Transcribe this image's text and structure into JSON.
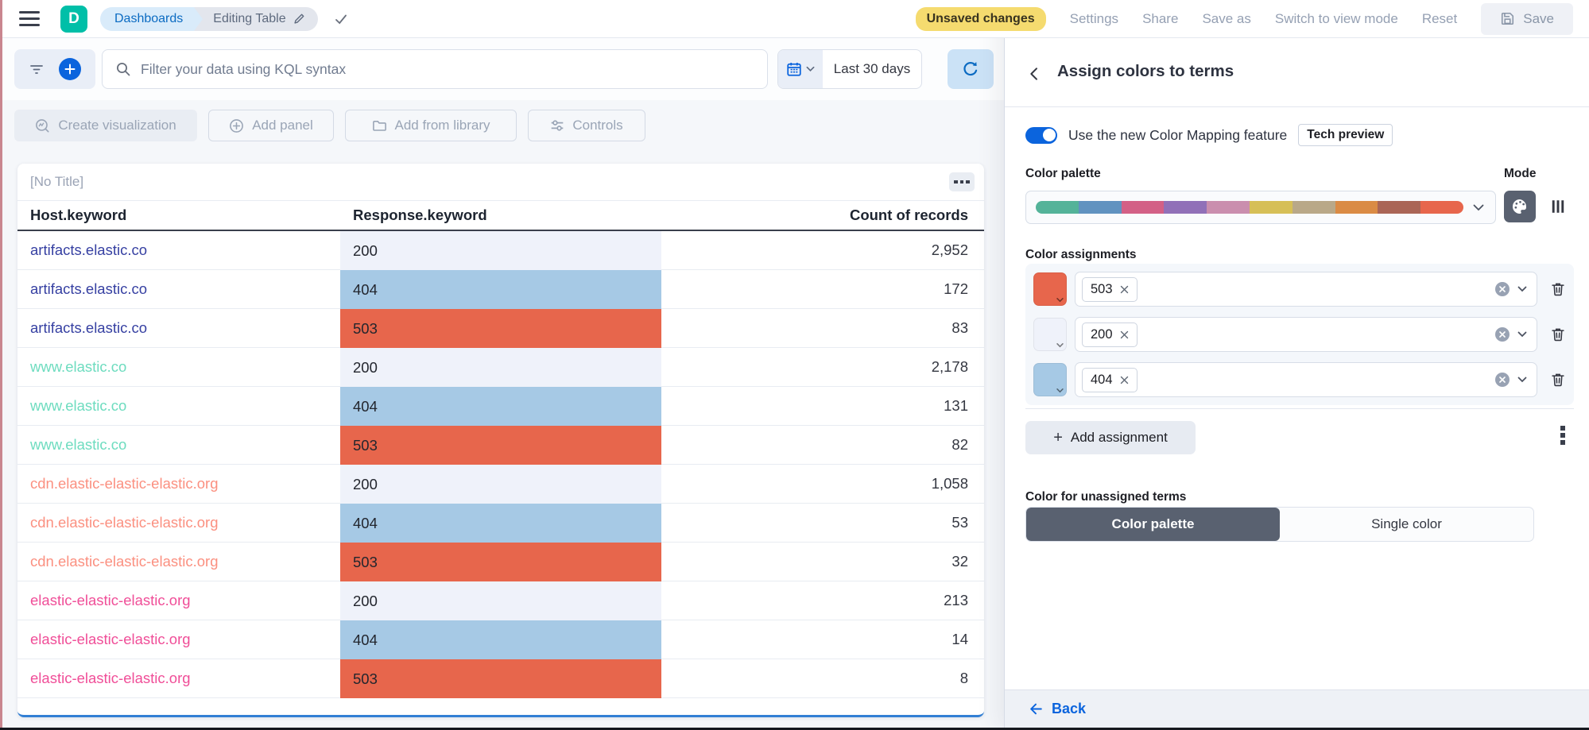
{
  "topbar": {
    "logo_letter": "D",
    "breadcrumbs": [
      "Dashboards",
      "Editing Table"
    ],
    "unsaved_badge": "Unsaved changes",
    "menu": [
      "Settings",
      "Share",
      "Save as",
      "Switch to view mode",
      "Reset"
    ],
    "save_label": "Save"
  },
  "query_bar": {
    "kql_placeholder": "Filter your data using KQL syntax",
    "time_range": "Last 30 days"
  },
  "toolbar": {
    "buttons": [
      "Create visualization",
      "Add panel",
      "Add from library",
      "Controls"
    ]
  },
  "panel": {
    "title": "[No Title]",
    "table": {
      "columns": [
        "Host.keyword",
        "Response.keyword",
        "Count of records"
      ],
      "rows": [
        {
          "host": "artifacts.elastic.co",
          "host_color": "#3640A2",
          "response": "200",
          "response_bg": "#EFF2FA",
          "count": "2,952"
        },
        {
          "host": "artifacts.elastic.co",
          "host_color": "#3640A2",
          "response": "404",
          "response_bg": "#A6C9E5",
          "count": "172"
        },
        {
          "host": "artifacts.elastic.co",
          "host_color": "#3640A2",
          "response": "503",
          "response_bg": "#E7664C",
          "count": "83"
        },
        {
          "host": "www.elastic.co",
          "host_color": "#6DDCBF",
          "response": "200",
          "response_bg": "#EFF2FA",
          "count": "2,178"
        },
        {
          "host": "www.elastic.co",
          "host_color": "#6DDCBF",
          "response": "404",
          "response_bg": "#A6C9E5",
          "count": "131"
        },
        {
          "host": "www.elastic.co",
          "host_color": "#6DDCBF",
          "response": "503",
          "response_bg": "#E7664C",
          "count": "82"
        },
        {
          "host": "cdn.elastic-elastic-elastic.org",
          "host_color": "#FB9080",
          "response": "200",
          "response_bg": "#EFF2FA",
          "count": "1,058"
        },
        {
          "host": "cdn.elastic-elastic-elastic.org",
          "host_color": "#FB9080",
          "response": "404",
          "response_bg": "#A6C9E5",
          "count": "53"
        },
        {
          "host": "cdn.elastic-elastic-elastic.org",
          "host_color": "#FB9080",
          "response": "503",
          "response_bg": "#E7664C",
          "count": "32"
        },
        {
          "host": "elastic-elastic-elastic.org",
          "host_color": "#F04E98",
          "response": "200",
          "response_bg": "#EFF2FA",
          "count": "213"
        },
        {
          "host": "elastic-elastic-elastic.org",
          "host_color": "#F04E98",
          "response": "404",
          "response_bg": "#A6C9E5",
          "count": "14"
        },
        {
          "host": "elastic-elastic-elastic.org",
          "host_color": "#F04E98",
          "response": "503",
          "response_bg": "#E7664C",
          "count": "8"
        }
      ]
    }
  },
  "flyout": {
    "title": "Assign colors to terms",
    "toggle_label": "Use the new Color Mapping feature",
    "tech_preview_badge": "Tech preview",
    "palette_label": "Color palette",
    "mode_label": "Mode",
    "palette_colors": [
      "#54B399",
      "#6092C0",
      "#D36086",
      "#9170B8",
      "#CA8EAE",
      "#D6BF57",
      "#B9A888",
      "#DA8B45",
      "#AA6556",
      "#E7664C"
    ],
    "assignments_label": "Color assignments",
    "assignments": [
      {
        "term": "503",
        "color": "#E7664C"
      },
      {
        "term": "200",
        "color": "#EFF2FA"
      },
      {
        "term": "404",
        "color": "#A6C9E5"
      }
    ],
    "add_assignment_label": "Add assignment",
    "unassigned_label": "Color for unassigned terms",
    "unassigned_options": [
      "Color palette",
      "Single color"
    ],
    "unassigned_selected": "Color palette",
    "back_label": "Back"
  },
  "colors": {
    "brand_teal": "#00BFA8",
    "primary_blue": "#0B64DD",
    "badge_yellow": "#F5DB6F",
    "selected_segment_gray": "#596170"
  }
}
